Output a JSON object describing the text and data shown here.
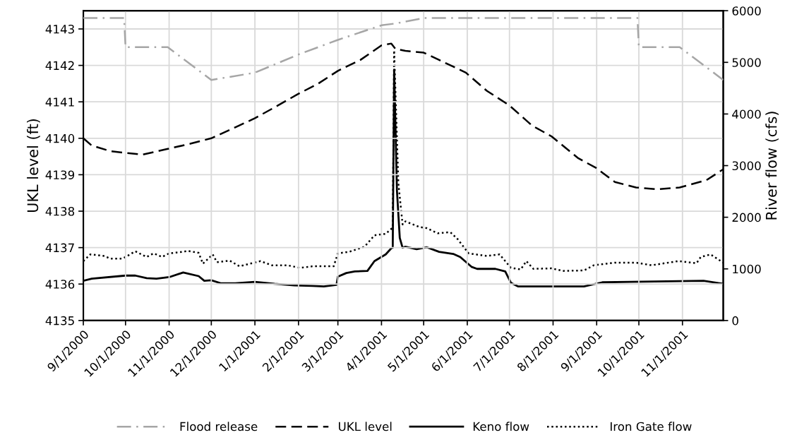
{
  "chart_data": {
    "type": "line",
    "ylabel": "UKL level (ft)",
    "y2label": "River flow (cfs)",
    "xlim": [
      "2000-09-01",
      "2001-11-30"
    ],
    "xticks": [
      {
        "value": "2000-09-01",
        "label": "9/1/2000"
      },
      {
        "value": "2000-10-01",
        "label": "10/1/2000"
      },
      {
        "value": "2000-11-01",
        "label": "11/1/2000"
      },
      {
        "value": "2000-12-01",
        "label": "12/1/2000"
      },
      {
        "value": "2001-01-01",
        "label": "1/1/2001"
      },
      {
        "value": "2001-02-01",
        "label": "2/1/2001"
      },
      {
        "value": "2001-03-01",
        "label": "3/1/2001"
      },
      {
        "value": "2001-04-01",
        "label": "4/1/2001"
      },
      {
        "value": "2001-05-01",
        "label": "5/1/2001"
      },
      {
        "value": "2001-06-01",
        "label": "6/1/2001"
      },
      {
        "value": "2001-07-01",
        "label": "7/1/2001"
      },
      {
        "value": "2001-08-01",
        "label": "8/1/2001"
      },
      {
        "value": "2001-09-01",
        "label": "9/1/2001"
      },
      {
        "value": "2001-10-01",
        "label": "10/1/2001"
      },
      {
        "value": "2001-11-01",
        "label": "11/1/2001"
      }
    ],
    "ylim": [
      4135,
      4143.5
    ],
    "yticks": [
      4135,
      4136,
      4137,
      4138,
      4139,
      4140,
      4141,
      4142,
      4143
    ],
    "y2lim": [
      0,
      6000
    ],
    "y2ticks": [
      0,
      1000,
      2000,
      3000,
      4000,
      5000,
      6000
    ],
    "grid": true,
    "legend": "bottom",
    "marker": "none",
    "series": [
      {
        "name": "Flood release",
        "color": "#a6a6a6",
        "line_style": "dashdot",
        "x": [
          "2000-09-01",
          "2000-09-30",
          "2000-10-01",
          "2000-10-31",
          "2000-12-01",
          "2001-01-01",
          "2001-02-01",
          "2001-03-01",
          "2001-04-01",
          "2001-04-11",
          "2001-05-01",
          "2001-09-30",
          "2001-10-01",
          "2001-10-30",
          "2001-11-30"
        ],
        "values": [
          4143.3,
          4143.3,
          4142.5,
          4142.5,
          4141.6,
          4141.8,
          4142.3,
          4142.7,
          4143.1,
          4143.15,
          4143.3,
          4143.3,
          4142.5,
          4142.5,
          4141.6
        ]
      },
      {
        "name": "UKL level",
        "color": "#000000",
        "line_style": "dashed",
        "x": [
          "2000-09-01",
          "2000-09-07",
          "2000-09-20",
          "2000-10-01",
          "2000-10-13",
          "2000-10-30",
          "2000-11-16",
          "2000-12-01",
          "2000-12-18",
          "2001-01-01",
          "2001-01-15",
          "2001-01-31",
          "2001-02-15",
          "2001-03-01",
          "2001-03-17",
          "2001-04-01",
          "2001-04-08",
          "2001-04-11",
          "2001-04-18",
          "2001-05-01",
          "2001-05-12",
          "2001-05-31",
          "2001-06-15",
          "2001-07-01",
          "2001-07-17",
          "2001-07-31",
          "2001-08-19",
          "2001-08-31",
          "2001-09-14",
          "2001-09-29",
          "2001-10-14",
          "2001-10-30",
          "2001-11-18",
          "2001-11-30"
        ],
        "values": [
          4140.0,
          4139.8,
          4139.65,
          4139.6,
          4139.55,
          4139.7,
          4139.85,
          4140.0,
          4140.3,
          4140.55,
          4140.85,
          4141.2,
          4141.5,
          4141.85,
          4142.15,
          4142.55,
          4142.6,
          4142.45,
          4142.4,
          4142.35,
          4142.15,
          4141.8,
          4141.3,
          4140.9,
          4140.35,
          4140.05,
          4139.45,
          4139.2,
          4138.8,
          4138.65,
          4138.6,
          4138.65,
          4138.85,
          4139.15
        ]
      },
      {
        "name": "Keno flow",
        "color": "#000000",
        "line_style": "solid",
        "axis": "y2",
        "x": [
          "2000-09-01",
          "2000-09-07",
          "2000-10-01",
          "2000-10-08",
          "2000-10-16",
          "2000-10-23",
          "2000-11-01",
          "2000-11-11",
          "2000-11-22",
          "2000-11-26",
          "2000-12-01",
          "2000-12-08",
          "2000-12-18",
          "2001-01-01",
          "2001-01-15",
          "2001-01-29",
          "2001-02-11",
          "2001-02-19",
          "2001-02-28",
          "2001-03-01",
          "2001-03-07",
          "2001-03-13",
          "2001-03-22",
          "2001-03-27",
          "2001-04-04",
          "2001-04-08",
          "2001-04-09",
          "2001-04-10",
          "2001-04-12",
          "2001-04-14",
          "2001-04-16",
          "2001-04-18",
          "2001-04-26",
          "2001-05-03",
          "2001-05-12",
          "2001-05-22",
          "2001-05-27",
          "2001-06-04",
          "2001-06-08",
          "2001-06-21",
          "2001-06-28",
          "2001-07-02",
          "2001-07-07",
          "2001-08-23",
          "2001-09-05",
          "2001-09-25",
          "2001-11-16",
          "2001-11-30"
        ],
        "values": [
          770,
          810,
          870,
          870,
          820,
          810,
          840,
          930,
          860,
          770,
          780,
          720,
          720,
          750,
          710,
          680,
          670,
          660,
          690,
          850,
          920,
          950,
          960,
          1150,
          1280,
          1400,
          1410,
          4860,
          2510,
          1600,
          1410,
          1430,
          1380,
          1420,
          1330,
          1290,
          1230,
          1040,
          1000,
          1000,
          950,
          730,
          660,
          660,
          740,
          750,
          770,
          710
        ]
      },
      {
        "name": "Iron Gate flow",
        "color": "#000000",
        "line_style": "dotted",
        "axis": "y2",
        "x": [
          "2000-09-01",
          "2000-09-06",
          "2000-09-16",
          "2000-09-20",
          "2000-09-29",
          "2000-10-08",
          "2000-10-16",
          "2000-10-21",
          "2000-10-27",
          "2000-11-01",
          "2000-11-11",
          "2000-11-14",
          "2000-11-22",
          "2000-11-25",
          "2000-12-02",
          "2000-12-05",
          "2000-12-14",
          "2000-12-21",
          "2001-01-05",
          "2001-01-13",
          "2001-01-24",
          "2001-02-02",
          "2001-02-11",
          "2001-02-26",
          "2001-03-01",
          "2001-03-09",
          "2001-03-20",
          "2001-03-27",
          "2001-04-04",
          "2001-04-09",
          "2001-04-10",
          "2001-04-13",
          "2001-04-16",
          "2001-04-18",
          "2001-04-28",
          "2001-05-03",
          "2001-05-11",
          "2001-05-20",
          "2001-05-25",
          "2001-06-02",
          "2001-06-15",
          "2001-06-24",
          "2001-07-02",
          "2001-07-09",
          "2001-07-13",
          "2001-07-18",
          "2001-07-31",
          "2001-08-08",
          "2001-08-23",
          "2001-08-30",
          "2001-09-14",
          "2001-09-29",
          "2001-10-10",
          "2001-10-29",
          "2001-11-11",
          "2001-11-14",
          "2001-11-21",
          "2001-11-30"
        ],
        "values": [
          1150,
          1280,
          1250,
          1200,
          1200,
          1340,
          1230,
          1300,
          1230,
          1300,
          1330,
          1350,
          1310,
          1100,
          1280,
          1130,
          1160,
          1050,
          1150,
          1070,
          1070,
          1020,
          1050,
          1050,
          1300,
          1330,
          1430,
          1650,
          1680,
          1800,
          5230,
          2660,
          1860,
          1920,
          1810,
          1790,
          1690,
          1710,
          1580,
          1300,
          1250,
          1280,
          1020,
          990,
          1150,
          1000,
          1010,
          960,
          970,
          1070,
          1120,
          1120,
          1070,
          1150,
          1110,
          1230,
          1280,
          1120
        ]
      }
    ]
  }
}
